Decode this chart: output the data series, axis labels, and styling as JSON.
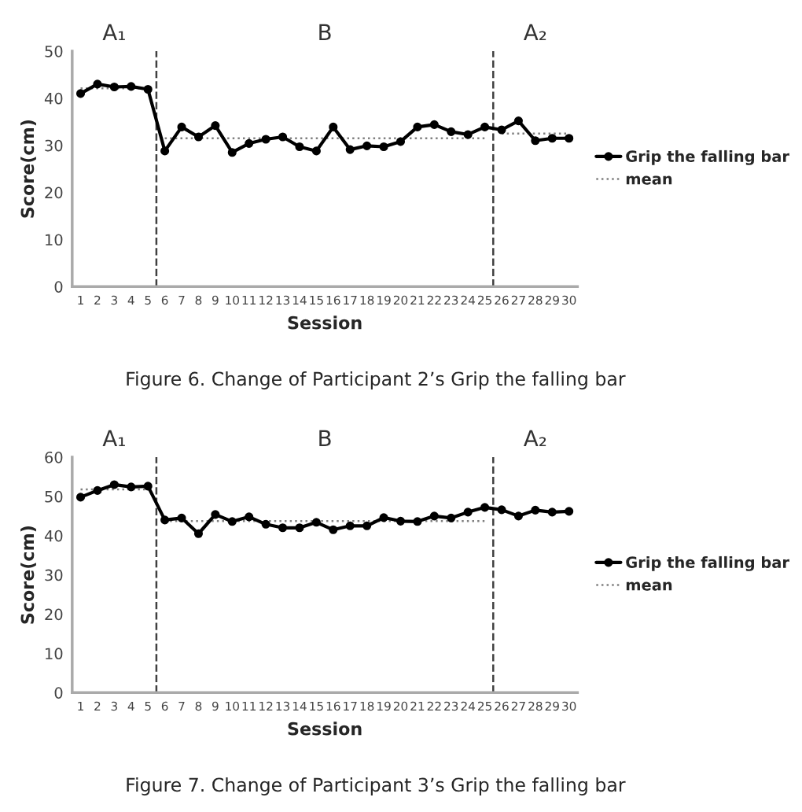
{
  "chart_data": [
    {
      "type": "line",
      "xlabel": "Session",
      "ylabel": "Score(cm)",
      "x": [
        1,
        2,
        3,
        4,
        5,
        6,
        7,
        8,
        9,
        10,
        11,
        12,
        13,
        14,
        15,
        16,
        17,
        18,
        19,
        20,
        21,
        22,
        23,
        24,
        25,
        26,
        27,
        28,
        29,
        30
      ],
      "xlim": [
        0.5,
        30.5
      ],
      "xticks": [
        1,
        2,
        3,
        4,
        5,
        6,
        7,
        8,
        9,
        10,
        11,
        12,
        13,
        14,
        15,
        16,
        17,
        18,
        19,
        20,
        21,
        22,
        23,
        24,
        25,
        26,
        27,
        28,
        29,
        30
      ],
      "ylim": [
        0,
        50
      ],
      "yticks": [
        0,
        10,
        20,
        30,
        40,
        50
      ],
      "legend": "right",
      "series": [
        {
          "name": "Grip the falling bar",
          "color": "#000000",
          "marker": "circle",
          "line_style": "solid",
          "values": [
            41,
            43,
            42.4,
            42.5,
            41.9,
            28.8,
            33.9,
            31.8,
            34.2,
            28.5,
            30.4,
            31.3,
            31.8,
            29.7,
            28.8,
            33.9,
            29.1,
            29.9,
            29.7,
            30.8,
            33.9,
            34.4,
            32.9,
            32.3,
            33.9,
            33.3,
            35.2,
            31,
            31.5,
            31.5
          ]
        },
        {
          "name": "mean",
          "color": "#808080",
          "marker": "none",
          "line_style": "dotted",
          "values": [
            42.1,
            42.1,
            42.1,
            42.1,
            42.1,
            null,
            null,
            null,
            null,
            null,
            null,
            null,
            null,
            null,
            null,
            null,
            null,
            null,
            null,
            null,
            null,
            null,
            null,
            null,
            null,
            null,
            null,
            null,
            null,
            null
          ]
        },
        {
          "color": "#808080",
          "marker": "none",
          "line_style": "dotted",
          "values": [
            null,
            null,
            null,
            null,
            null,
            31.5,
            31.5,
            31.5,
            31.5,
            31.5,
            31.5,
            31.5,
            31.5,
            31.5,
            31.5,
            31.5,
            31.5,
            31.5,
            31.5,
            31.5,
            31.5,
            31.5,
            31.5,
            31.5,
            31.5,
            null,
            null,
            null,
            null,
            null
          ]
        },
        {
          "color": "#808080",
          "marker": "none",
          "line_style": "dotted",
          "values": [
            null,
            null,
            null,
            null,
            null,
            null,
            null,
            null,
            null,
            null,
            null,
            null,
            null,
            null,
            null,
            null,
            null,
            null,
            null,
            null,
            null,
            null,
            null,
            null,
            null,
            32.5,
            32.5,
            32.5,
            32.5,
            32.5
          ]
        }
      ],
      "ref_lines": [
        {
          "axis": "x",
          "value": 5.5,
          "color": "#404040",
          "line_style": "dashed"
        },
        {
          "axis": "x",
          "value": 25.5,
          "color": "#404040",
          "line_style": "dashed"
        }
      ],
      "annotations": [
        "A₁",
        "B",
        "A₂",
        "Figure 6. Change of Participant 2’s Grip the falling bar"
      ]
    },
    {
      "type": "line",
      "xlabel": "Session",
      "ylabel": "Score(cm)",
      "x": [
        1,
        2,
        3,
        4,
        5,
        6,
        7,
        8,
        9,
        10,
        11,
        12,
        13,
        14,
        15,
        16,
        17,
        18,
        19,
        20,
        21,
        22,
        23,
        24,
        25,
        26,
        27,
        28,
        29,
        30
      ],
      "xlim": [
        0.5,
        30.5
      ],
      "xticks": [
        1,
        2,
        3,
        4,
        5,
        6,
        7,
        8,
        9,
        10,
        11,
        12,
        13,
        14,
        15,
        16,
        17,
        18,
        19,
        20,
        21,
        22,
        23,
        24,
        25,
        26,
        27,
        28,
        29,
        30
      ],
      "ylim": [
        0,
        60
      ],
      "yticks": [
        0,
        10,
        20,
        30,
        40,
        50,
        60
      ],
      "legend": "right",
      "series": [
        {
          "name": "Grip the falling bar",
          "color": "#000000",
          "marker": "circle",
          "line_style": "solid",
          "values": [
            49.8,
            51.5,
            53,
            52.4,
            52.6,
            44,
            44.5,
            40.5,
            45.4,
            43.6,
            44.8,
            42.9,
            42,
            42,
            43.4,
            41.5,
            42.5,
            42.5,
            44.6,
            43.7,
            43.6,
            45,
            44.5,
            46,
            47.2,
            46.6,
            45,
            46.5,
            46,
            46.2
          ]
        },
        {
          "name": "mean",
          "color": "#808080",
          "marker": "none",
          "line_style": "dotted",
          "values": [
            51.8,
            51.8,
            51.8,
            51.8,
            51.8,
            null,
            null,
            null,
            null,
            null,
            null,
            null,
            null,
            null,
            null,
            null,
            null,
            null,
            null,
            null,
            null,
            null,
            null,
            null,
            null,
            null,
            null,
            null,
            null,
            null
          ]
        },
        {
          "color": "#808080",
          "marker": "none",
          "line_style": "dotted",
          "values": [
            null,
            null,
            null,
            null,
            null,
            43.7,
            43.7,
            43.7,
            43.7,
            43.7,
            43.7,
            43.7,
            43.7,
            43.7,
            43.7,
            43.7,
            43.7,
            43.7,
            43.7,
            43.7,
            43.7,
            43.7,
            43.7,
            43.7,
            43.7,
            null,
            null,
            null,
            null,
            null
          ]
        }
      ],
      "ref_lines": [
        {
          "axis": "x",
          "value": 5.5,
          "color": "#404040",
          "line_style": "dashed"
        },
        {
          "axis": "x",
          "value": 25.5,
          "color": "#404040",
          "line_style": "dashed"
        }
      ],
      "annotations": [
        "A₁",
        "B",
        "A₂",
        "Figure 7. Change of Participant 3’s Grip the falling bar"
      ]
    }
  ]
}
